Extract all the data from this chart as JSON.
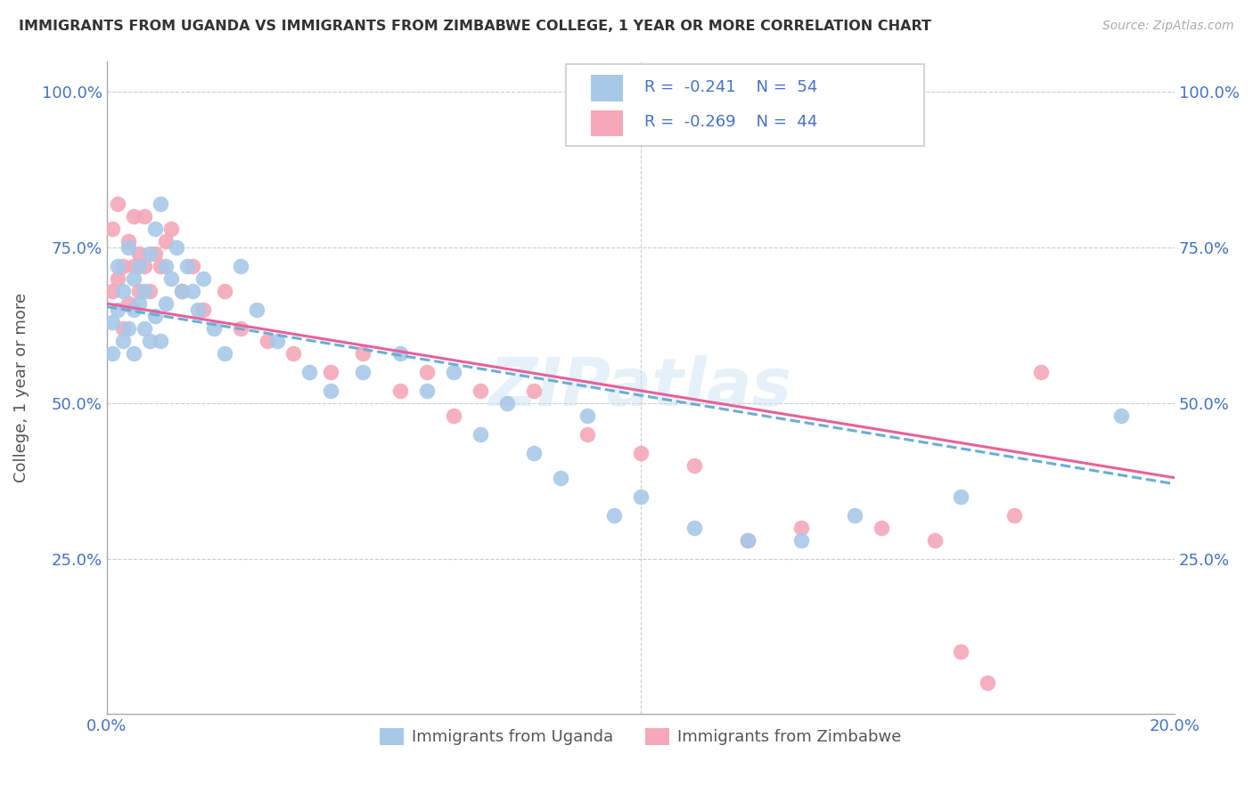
{
  "title": "IMMIGRANTS FROM UGANDA VS IMMIGRANTS FROM ZIMBABWE COLLEGE, 1 YEAR OR MORE CORRELATION CHART",
  "source": "Source: ZipAtlas.com",
  "ylabel": "College, 1 year or more",
  "xmin": 0.0,
  "xmax": 0.2,
  "ymin": 0.0,
  "ymax": 1.05,
  "legend_r1": "-0.241",
  "legend_n1": "54",
  "legend_r2": "-0.269",
  "legend_n2": "44",
  "color_uganda": "#a8c8e8",
  "color_zimbabwe": "#f4a8b8",
  "color_trend_uganda": "#6aaed6",
  "color_trend_zimbabwe": "#e8609a",
  "color_blue": "#4472c4",
  "watermark": "ZIPatlas",
  "legend_label1": "Immigrants from Uganda",
  "legend_label2": "Immigrants from Zimbabwe",
  "uganda_x": [
    0.001,
    0.001,
    0.002,
    0.002,
    0.003,
    0.003,
    0.004,
    0.004,
    0.005,
    0.005,
    0.005,
    0.006,
    0.006,
    0.007,
    0.007,
    0.008,
    0.008,
    0.009,
    0.009,
    0.01,
    0.01,
    0.011,
    0.011,
    0.012,
    0.013,
    0.014,
    0.015,
    0.016,
    0.017,
    0.018,
    0.02,
    0.022,
    0.025,
    0.028,
    0.032,
    0.038,
    0.042,
    0.048,
    0.055,
    0.06,
    0.065,
    0.07,
    0.075,
    0.08,
    0.085,
    0.09,
    0.095,
    0.1,
    0.11,
    0.12,
    0.13,
    0.14,
    0.16,
    0.19
  ],
  "uganda_y": [
    0.63,
    0.58,
    0.72,
    0.65,
    0.68,
    0.6,
    0.75,
    0.62,
    0.7,
    0.65,
    0.58,
    0.72,
    0.66,
    0.68,
    0.62,
    0.74,
    0.6,
    0.78,
    0.64,
    0.82,
    0.6,
    0.72,
    0.66,
    0.7,
    0.75,
    0.68,
    0.72,
    0.68,
    0.65,
    0.7,
    0.62,
    0.58,
    0.72,
    0.65,
    0.6,
    0.55,
    0.52,
    0.55,
    0.58,
    0.52,
    0.55,
    0.45,
    0.5,
    0.42,
    0.38,
    0.48,
    0.32,
    0.35,
    0.3,
    0.28,
    0.28,
    0.32,
    0.35,
    0.48
  ],
  "zimbabwe_x": [
    0.001,
    0.001,
    0.002,
    0.002,
    0.003,
    0.003,
    0.004,
    0.004,
    0.005,
    0.005,
    0.006,
    0.006,
    0.007,
    0.007,
    0.008,
    0.009,
    0.01,
    0.011,
    0.012,
    0.014,
    0.016,
    0.018,
    0.022,
    0.025,
    0.03,
    0.035,
    0.042,
    0.048,
    0.055,
    0.06,
    0.065,
    0.07,
    0.08,
    0.09,
    0.1,
    0.11,
    0.12,
    0.13,
    0.145,
    0.155,
    0.16,
    0.165,
    0.17,
    0.175
  ],
  "zimbabwe_y": [
    0.78,
    0.68,
    0.82,
    0.7,
    0.72,
    0.62,
    0.76,
    0.66,
    0.8,
    0.72,
    0.74,
    0.68,
    0.8,
    0.72,
    0.68,
    0.74,
    0.72,
    0.76,
    0.78,
    0.68,
    0.72,
    0.65,
    0.68,
    0.62,
    0.6,
    0.58,
    0.55,
    0.58,
    0.52,
    0.55,
    0.48,
    0.52,
    0.52,
    0.45,
    0.42,
    0.4,
    0.28,
    0.3,
    0.3,
    0.28,
    0.1,
    0.05,
    0.32,
    0.55
  ],
  "uganda_trend_x0": 0.0,
  "uganda_trend_y0": 0.655,
  "uganda_trend_x1": 0.2,
  "uganda_trend_y1": 0.37,
  "zimbabwe_trend_x0": 0.0,
  "zimbabwe_trend_y0": 0.66,
  "zimbabwe_trend_x1": 0.2,
  "zimbabwe_trend_y1": 0.38
}
